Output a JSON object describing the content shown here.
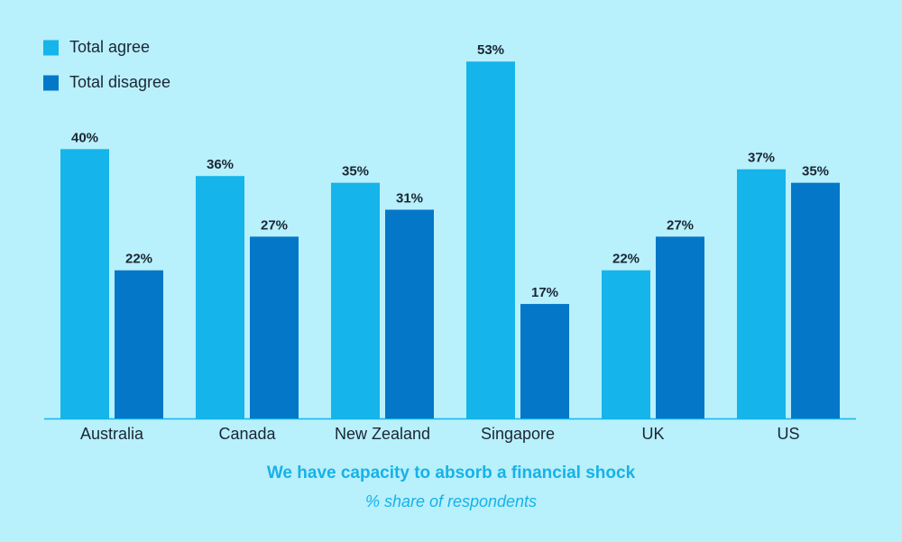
{
  "chart_data": {
    "type": "bar",
    "title": "We have capacity to absorb a financial shock",
    "subtitle": "% share of respondents",
    "categories": [
      "Australia",
      "Canada",
      "New Zealand",
      "Singapore",
      "UK",
      "US"
    ],
    "series": [
      {
        "name": "Total agree",
        "color": "#15b4ea",
        "values": [
          40,
          36,
          35,
          53,
          22,
          37
        ],
        "value_labels": [
          "40%",
          "36%",
          "35%",
          "53%",
          "22%",
          "37%"
        ]
      },
      {
        "name": "Total disagree",
        "color": "#0577c8",
        "values": [
          22,
          27,
          31,
          17,
          27,
          35
        ],
        "value_labels": [
          "22%",
          "27%",
          "31%",
          "17%",
          "27%",
          "35%"
        ]
      }
    ],
    "ylim": [
      0,
      60
    ]
  }
}
